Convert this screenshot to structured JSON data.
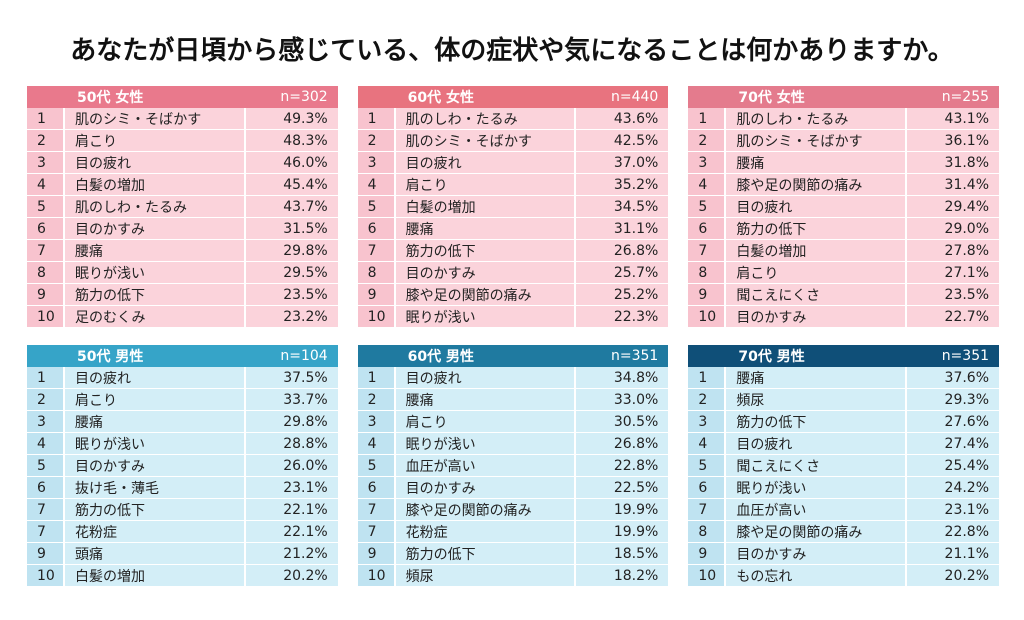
{
  "title": "あなたが日頃から感じている、体の症状や気になることは何かありますか。",
  "colors": {
    "female_header": "#e9798c",
    "female_row": "#fbd3db",
    "male_header_50": "#36a4c8",
    "male_header_60": "#1f7aa0",
    "male_header_70": "#0f4f78",
    "male_row": "#d3eef7"
  },
  "female": [
    {
      "label": "50代 女性",
      "n": "n=302",
      "rows": [
        {
          "rank": "1",
          "item": "肌のシミ・そばかす",
          "pct": "49.3%"
        },
        {
          "rank": "2",
          "item": "肩こり",
          "pct": "48.3%"
        },
        {
          "rank": "3",
          "item": "目の疲れ",
          "pct": "46.0%"
        },
        {
          "rank": "4",
          "item": "白髪の増加",
          "pct": "45.4%"
        },
        {
          "rank": "5",
          "item": "肌のしわ・たるみ",
          "pct": "43.7%"
        },
        {
          "rank": "6",
          "item": "目のかすみ",
          "pct": "31.5%"
        },
        {
          "rank": "7",
          "item": "腰痛",
          "pct": "29.8%"
        },
        {
          "rank": "8",
          "item": "眠りが浅い",
          "pct": "29.5%"
        },
        {
          "rank": "9",
          "item": "筋力の低下",
          "pct": "23.5%"
        },
        {
          "rank": "10",
          "item": "足のむくみ",
          "pct": "23.2%"
        }
      ]
    },
    {
      "label": "60代 女性",
      "n": "n=440",
      "rows": [
        {
          "rank": "1",
          "item": "肌のしわ・たるみ",
          "pct": "43.6%"
        },
        {
          "rank": "2",
          "item": "肌のシミ・そばかす",
          "pct": "42.5%"
        },
        {
          "rank": "3",
          "item": "目の疲れ",
          "pct": "37.0%"
        },
        {
          "rank": "4",
          "item": "肩こり",
          "pct": "35.2%"
        },
        {
          "rank": "5",
          "item": "白髪の増加",
          "pct": "34.5%"
        },
        {
          "rank": "6",
          "item": "腰痛",
          "pct": "31.1%"
        },
        {
          "rank": "7",
          "item": "筋力の低下",
          "pct": "26.8%"
        },
        {
          "rank": "8",
          "item": "目のかすみ",
          "pct": "25.7%"
        },
        {
          "rank": "9",
          "item": "膝や足の関節の痛み",
          "pct": "25.2%"
        },
        {
          "rank": "10",
          "item": "眠りが浅い",
          "pct": "22.3%"
        }
      ]
    },
    {
      "label": "70代 女性",
      "n": "n=255",
      "rows": [
        {
          "rank": "1",
          "item": "肌のしわ・たるみ",
          "pct": "43.1%"
        },
        {
          "rank": "2",
          "item": "肌のシミ・そばかす",
          "pct": "36.1%"
        },
        {
          "rank": "3",
          "item": "腰痛",
          "pct": "31.8%"
        },
        {
          "rank": "4",
          "item": "膝や足の関節の痛み",
          "pct": "31.4%"
        },
        {
          "rank": "5",
          "item": "目の疲れ",
          "pct": "29.4%"
        },
        {
          "rank": "6",
          "item": "筋力の低下",
          "pct": "29.0%"
        },
        {
          "rank": "7",
          "item": "白髪の増加",
          "pct": "27.8%"
        },
        {
          "rank": "8",
          "item": "肩こり",
          "pct": "27.1%"
        },
        {
          "rank": "9",
          "item": "聞こえにくさ",
          "pct": "23.5%"
        },
        {
          "rank": "10",
          "item": "目のかすみ",
          "pct": "22.7%"
        }
      ]
    }
  ],
  "male": [
    {
      "label": "50代 男性",
      "n": "n=104",
      "rows": [
        {
          "rank": "1",
          "item": "目の疲れ",
          "pct": "37.5%"
        },
        {
          "rank": "2",
          "item": "肩こり",
          "pct": "33.7%"
        },
        {
          "rank": "3",
          "item": "腰痛",
          "pct": "29.8%"
        },
        {
          "rank": "4",
          "item": "眠りが浅い",
          "pct": "28.8%"
        },
        {
          "rank": "5",
          "item": "目のかすみ",
          "pct": "26.0%"
        },
        {
          "rank": "6",
          "item": "抜け毛・薄毛",
          "pct": "23.1%"
        },
        {
          "rank": "7",
          "item": "筋力の低下",
          "pct": "22.1%"
        },
        {
          "rank": "7",
          "item": "花粉症",
          "pct": "22.1%"
        },
        {
          "rank": "9",
          "item": "頭痛",
          "pct": "21.2%"
        },
        {
          "rank": "10",
          "item": "白髪の増加",
          "pct": "20.2%"
        }
      ]
    },
    {
      "label": "60代 男性",
      "n": "n=351",
      "rows": [
        {
          "rank": "1",
          "item": "目の疲れ",
          "pct": "34.8%"
        },
        {
          "rank": "2",
          "item": "腰痛",
          "pct": "33.0%"
        },
        {
          "rank": "3",
          "item": "肩こり",
          "pct": "30.5%"
        },
        {
          "rank": "4",
          "item": "眠りが浅い",
          "pct": "26.8%"
        },
        {
          "rank": "5",
          "item": "血圧が高い",
          "pct": "22.8%"
        },
        {
          "rank": "6",
          "item": "目のかすみ",
          "pct": "22.5%"
        },
        {
          "rank": "7",
          "item": "膝や足の関節の痛み",
          "pct": "19.9%"
        },
        {
          "rank": "7",
          "item": "花粉症",
          "pct": "19.9%"
        },
        {
          "rank": "9",
          "item": "筋力の低下",
          "pct": "18.5%"
        },
        {
          "rank": "10",
          "item": "頻尿",
          "pct": "18.2%"
        }
      ]
    },
    {
      "label": "70代 男性",
      "n": "n=351",
      "rows": [
        {
          "rank": "1",
          "item": "腰痛",
          "pct": "37.6%"
        },
        {
          "rank": "2",
          "item": "頻尿",
          "pct": "29.3%"
        },
        {
          "rank": "3",
          "item": "筋力の低下",
          "pct": "27.6%"
        },
        {
          "rank": "4",
          "item": "目の疲れ",
          "pct": "27.4%"
        },
        {
          "rank": "5",
          "item": "聞こえにくさ",
          "pct": "25.4%"
        },
        {
          "rank": "6",
          "item": "眠りが浅い",
          "pct": "24.2%"
        },
        {
          "rank": "7",
          "item": "血圧が高い",
          "pct": "23.1%"
        },
        {
          "rank": "8",
          "item": "膝や足の関節の痛み",
          "pct": "22.8%"
        },
        {
          "rank": "9",
          "item": "目のかすみ",
          "pct": "21.1%"
        },
        {
          "rank": "10",
          "item": "もの忘れ",
          "pct": "20.2%"
        }
      ]
    }
  ]
}
